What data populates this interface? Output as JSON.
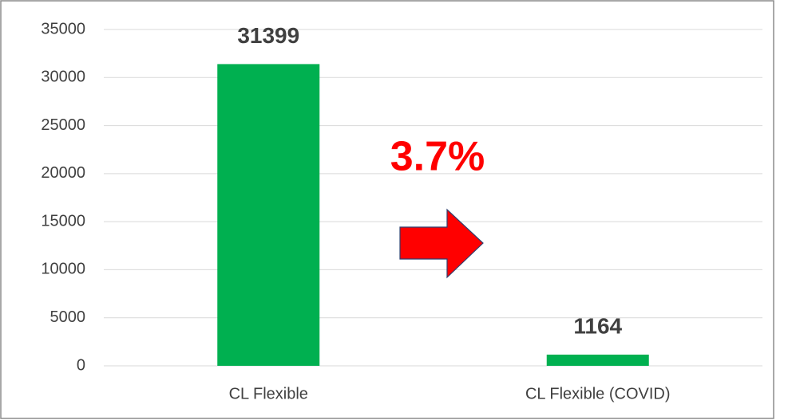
{
  "chart_data": {
    "type": "bar",
    "categories": [
      "CL Flexible",
      "CL Flexible (COVID)"
    ],
    "values": [
      31399,
      1164
    ],
    "color": "#00b050",
    "ylim": [
      0,
      35000
    ],
    "yticks": [
      0,
      5000,
      10000,
      15000,
      20000,
      25000,
      30000,
      35000
    ],
    "grid": true,
    "annotation": "3.7%"
  }
}
